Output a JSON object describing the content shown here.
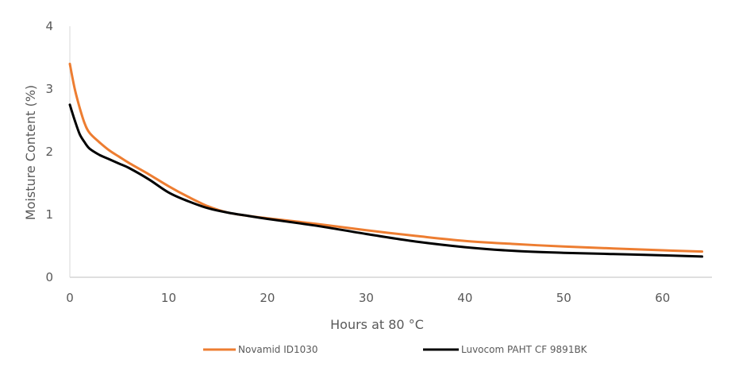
{
  "chart_data": {
    "type": "line",
    "title": "",
    "xlabel": "Hours at 80 °C",
    "ylabel": "Moisture Content (%)",
    "xlim": [
      0,
      65
    ],
    "ylim": [
      0,
      4
    ],
    "xticks": [
      0,
      10,
      20,
      30,
      40,
      50,
      60
    ],
    "yticks": [
      0,
      1,
      2,
      3,
      4
    ],
    "grid": false,
    "legend_position": "bottom",
    "series": [
      {
        "name": "Novamid ID1030",
        "color": "#ED7D31",
        "x": [
          0,
          0.5,
          1,
          1.5,
          2,
          3,
          4,
          5,
          6,
          8,
          10,
          12,
          14,
          16,
          18,
          20,
          25,
          30,
          35,
          40,
          45,
          50,
          55,
          60,
          64
        ],
        "y": [
          3.4,
          3.0,
          2.7,
          2.45,
          2.3,
          2.15,
          2.02,
          1.92,
          1.82,
          1.64,
          1.45,
          1.28,
          1.13,
          1.03,
          0.98,
          0.94,
          0.85,
          0.75,
          0.66,
          0.58,
          0.53,
          0.49,
          0.46,
          0.43,
          0.41
        ]
      },
      {
        "name": "Luvocom PAHT CF 9891BK",
        "color": "#000000",
        "x": [
          0,
          0.5,
          1,
          1.5,
          2,
          3,
          4,
          5,
          6,
          8,
          10,
          12,
          14,
          16,
          18,
          20,
          25,
          30,
          35,
          40,
          45,
          50,
          55,
          60,
          64
        ],
        "y": [
          2.75,
          2.5,
          2.28,
          2.15,
          2.05,
          1.95,
          1.88,
          1.81,
          1.74,
          1.56,
          1.35,
          1.21,
          1.1,
          1.03,
          0.98,
          0.93,
          0.82,
          0.69,
          0.57,
          0.48,
          0.42,
          0.39,
          0.37,
          0.35,
          0.33
        ]
      }
    ]
  }
}
